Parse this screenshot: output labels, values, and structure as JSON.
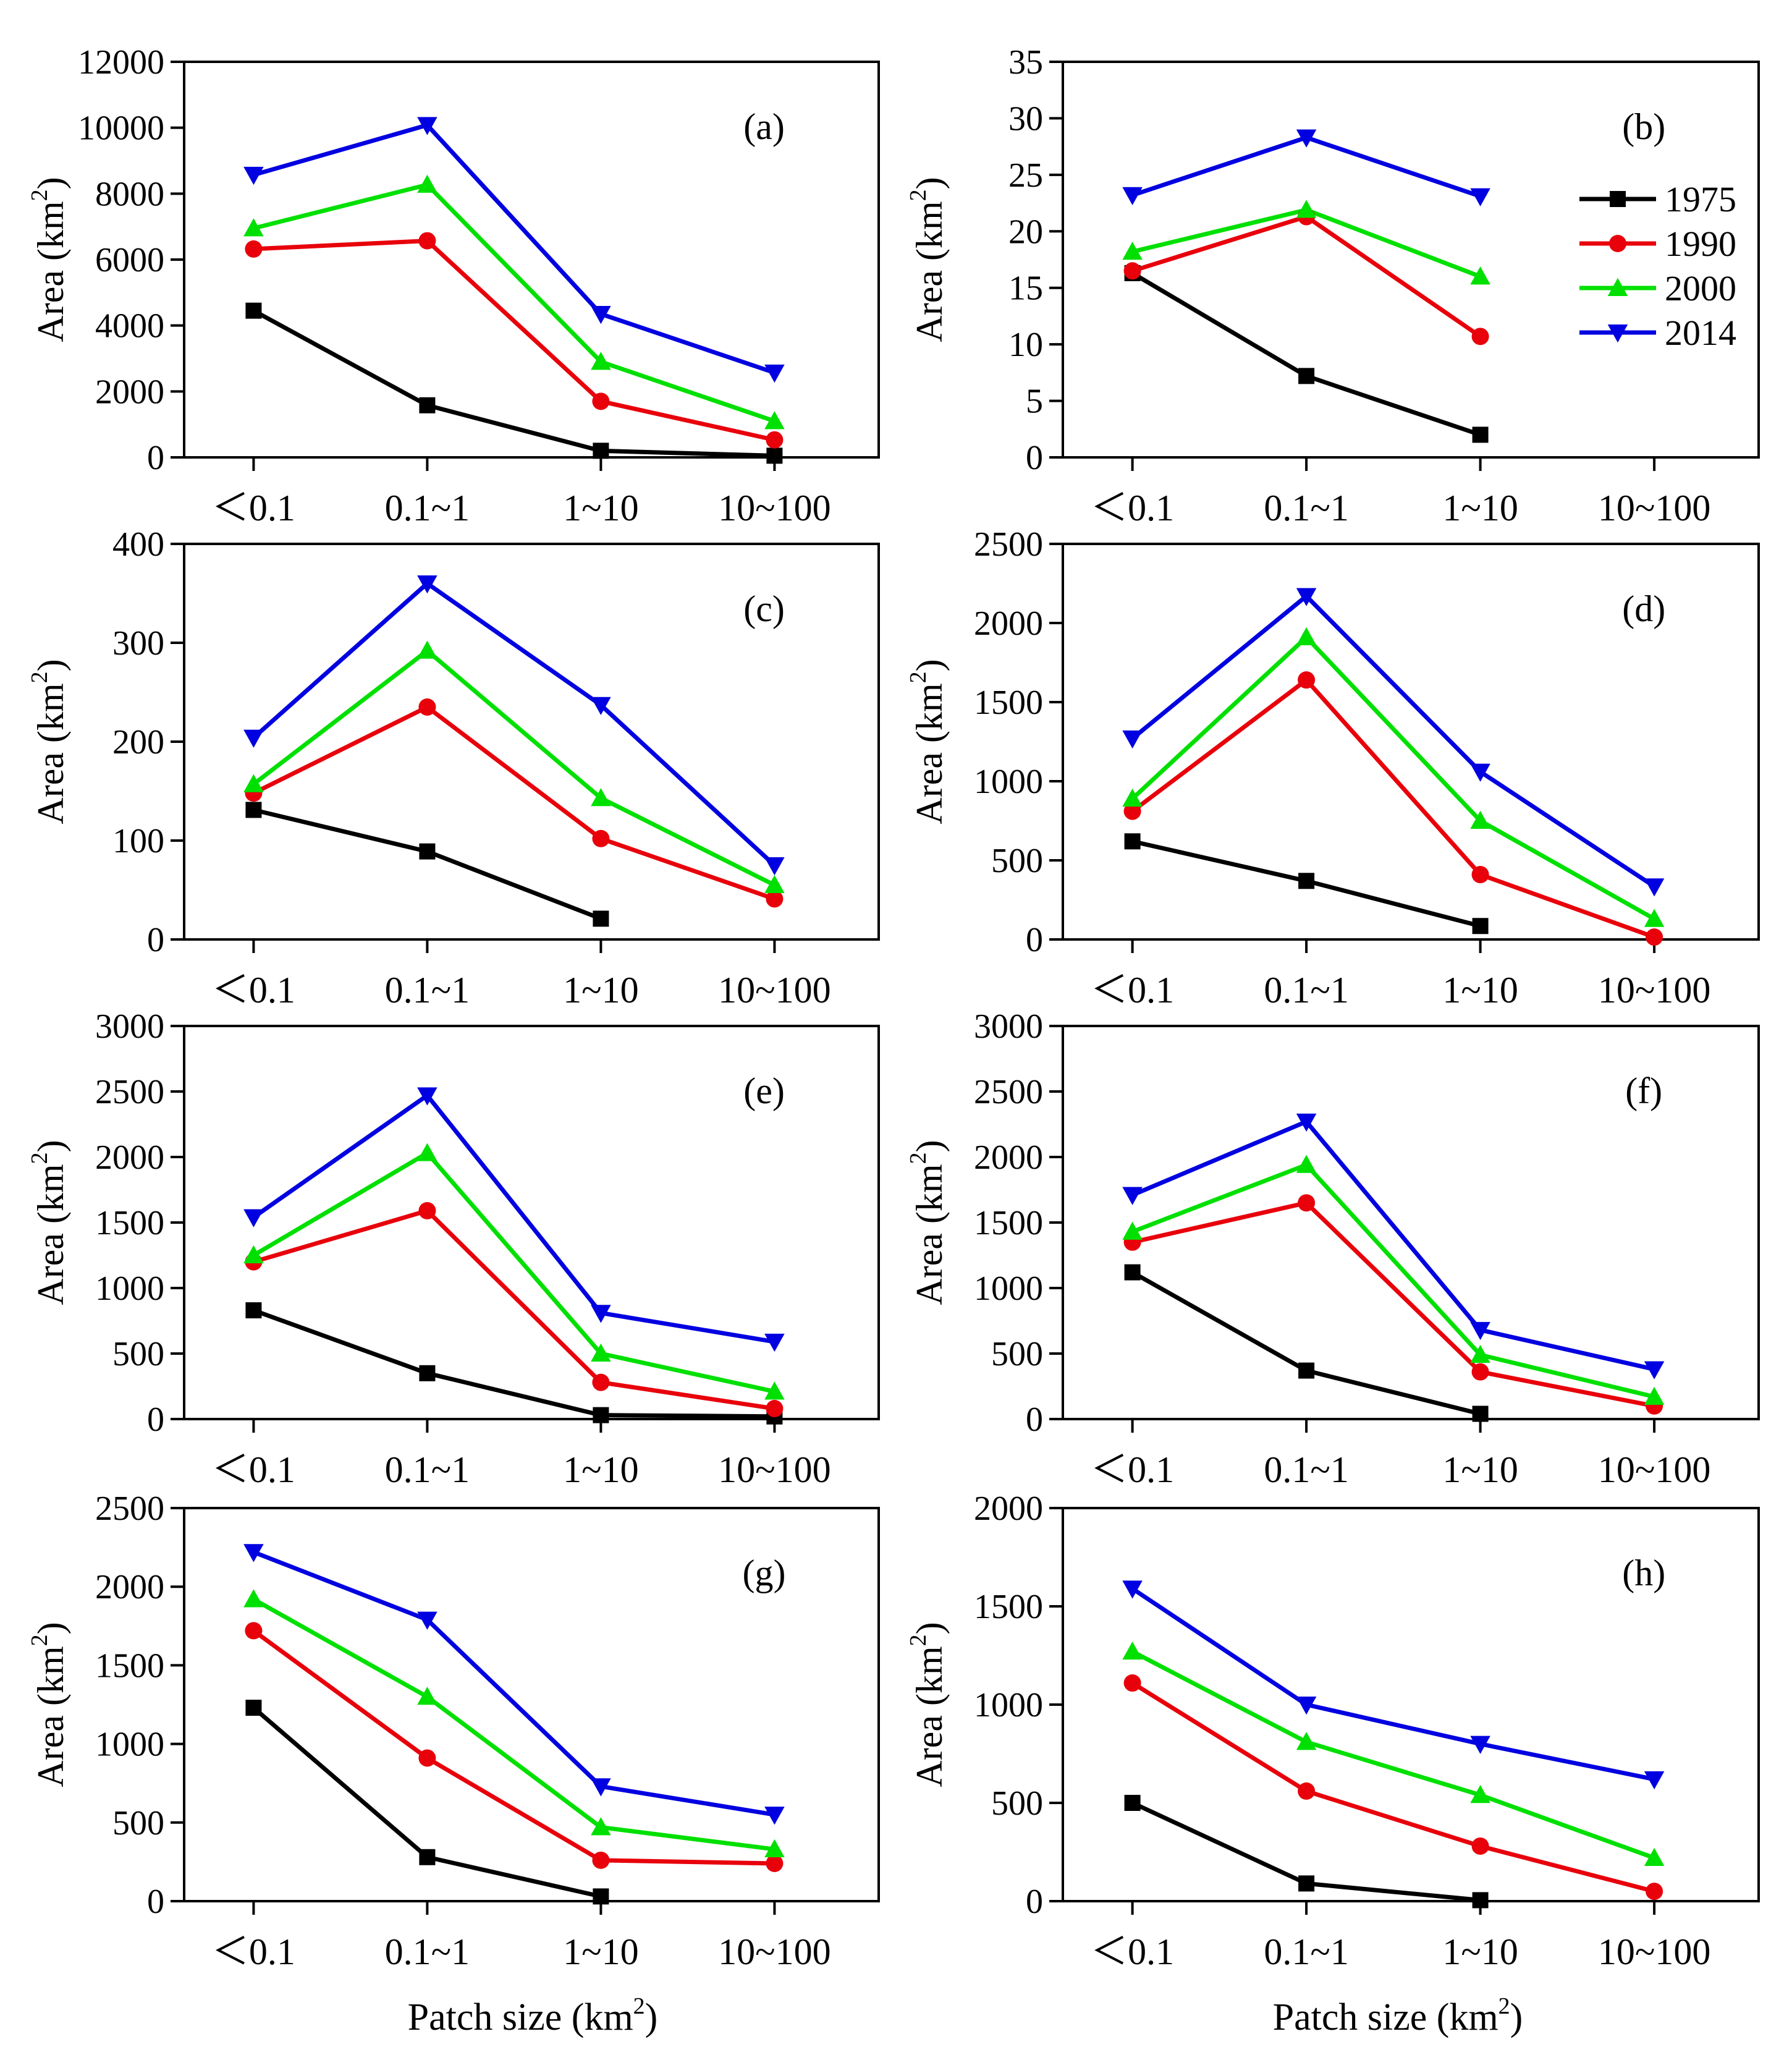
{
  "figure": {
    "xlabel_prefix": "Patch size (km",
    "xlabel_sup": "2",
    "xlabel_suffix": ")",
    "ylabel_prefix": "Area (km",
    "ylabel_sup": "2",
    "ylabel_suffix": ")"
  },
  "legend": [
    {
      "label": "1975",
      "color": "#000000",
      "marker": "square"
    },
    {
      "label": "1990",
      "color": "#e8000b",
      "marker": "circle"
    },
    {
      "label": "2000",
      "color": "#00e000",
      "marker": "triangle-up"
    },
    {
      "label": "2014",
      "color": "#0000e0",
      "marker": "triangle-down"
    }
  ],
  "chart_data": [
    {
      "type": "line",
      "panel": "(a)",
      "categories": [
        "<0.1",
        "0.1~1",
        "1~10",
        "10~100"
      ],
      "ylim": [
        0,
        12000
      ],
      "yticks": [
        0,
        2000,
        4000,
        6000,
        8000,
        10000,
        12000
      ],
      "series": [
        {
          "name": "1975",
          "values": [
            4450,
            1580,
            200,
            50
          ]
        },
        {
          "name": "1990",
          "values": [
            6320,
            6570,
            1700,
            530
          ]
        },
        {
          "name": "2000",
          "values": [
            6950,
            8270,
            2900,
            1100
          ]
        },
        {
          "name": "2014",
          "values": [
            8570,
            10080,
            4350,
            2570
          ]
        }
      ]
    },
    {
      "type": "line",
      "panel": "(b)",
      "categories": [
        "<0.1",
        "0.1~1",
        "1~10",
        "10~100"
      ],
      "ylim": [
        0,
        35
      ],
      "yticks": [
        0,
        5,
        10,
        15,
        20,
        25,
        30,
        35
      ],
      "series": [
        {
          "name": "1975",
          "values": [
            16.3,
            7.2,
            2.0,
            null
          ]
        },
        {
          "name": "1990",
          "values": [
            16.5,
            21.3,
            10.7,
            null
          ]
        },
        {
          "name": "2000",
          "values": [
            18.2,
            21.9,
            16.0,
            null
          ]
        },
        {
          "name": "2014",
          "values": [
            23.2,
            28.3,
            23.1,
            null
          ]
        }
      ]
    },
    {
      "type": "line",
      "panel": "(c)",
      "categories": [
        "<0.1",
        "0.1~1",
        "1~10",
        "10~100"
      ],
      "ylim": [
        0,
        400
      ],
      "yticks": [
        0,
        100,
        200,
        300,
        400
      ],
      "series": [
        {
          "name": "1975",
          "values": [
            131,
            89,
            21,
            null
          ]
        },
        {
          "name": "1990",
          "values": [
            148,
            235,
            102,
            41
          ]
        },
        {
          "name": "2000",
          "values": [
            157,
            292,
            143,
            55
          ]
        },
        {
          "name": "2014",
          "values": [
            204,
            360,
            237,
            75
          ]
        }
      ]
    },
    {
      "type": "line",
      "panel": "(d)",
      "categories": [
        "<0.1",
        "0.1~1",
        "1~10",
        "10~100"
      ],
      "ylim": [
        0,
        2500
      ],
      "yticks": [
        0,
        500,
        1000,
        1500,
        2000,
        2500
      ],
      "series": [
        {
          "name": "1975",
          "values": [
            620,
            370,
            85,
            null
          ]
        },
        {
          "name": "1990",
          "values": [
            810,
            1640,
            410,
            15
          ]
        },
        {
          "name": "2000",
          "values": [
            890,
            1910,
            750,
            130
          ]
        },
        {
          "name": "2014",
          "values": [
            1270,
            2170,
            1060,
            335
          ]
        }
      ]
    },
    {
      "type": "line",
      "panel": "(e)",
      "categories": [
        "<0.1",
        "0.1~1",
        "1~10",
        "10~100"
      ],
      "ylim": [
        0,
        3000
      ],
      "yticks": [
        0,
        500,
        1000,
        1500,
        2000,
        2500,
        3000
      ],
      "series": [
        {
          "name": "1975",
          "values": [
            830,
            350,
            30,
            20
          ]
        },
        {
          "name": "1990",
          "values": [
            1200,
            1590,
            280,
            80
          ]
        },
        {
          "name": "2000",
          "values": [
            1250,
            2030,
            500,
            210
          ]
        },
        {
          "name": "2014",
          "values": [
            1540,
            2470,
            810,
            590
          ]
        }
      ]
    },
    {
      "type": "line",
      "panel": "(f)",
      "categories": [
        "<0.1",
        "0.1~1",
        "1~10",
        "10~100"
      ],
      "ylim": [
        0,
        3000
      ],
      "yticks": [
        0,
        500,
        1000,
        1500,
        2000,
        2500,
        3000
      ],
      "series": [
        {
          "name": "1975",
          "values": [
            1120,
            370,
            40,
            null
          ]
        },
        {
          "name": "1990",
          "values": [
            1350,
            1650,
            360,
            100
          ]
        },
        {
          "name": "2000",
          "values": [
            1430,
            1940,
            490,
            170
          ]
        },
        {
          "name": "2014",
          "values": [
            1710,
            2270,
            680,
            380
          ]
        }
      ]
    },
    {
      "type": "line",
      "panel": "(g)",
      "categories": [
        "<0.1",
        "0.1~1",
        "1~10",
        "10~100"
      ],
      "ylim": [
        0,
        2500
      ],
      "yticks": [
        0,
        500,
        1000,
        1500,
        2000,
        2500
      ],
      "series": [
        {
          "name": "1975",
          "values": [
            1230,
            280,
            30,
            null
          ]
        },
        {
          "name": "1990",
          "values": [
            1720,
            910,
            260,
            240
          ]
        },
        {
          "name": "2000",
          "values": [
            1920,
            1300,
            470,
            330
          ]
        },
        {
          "name": "2014",
          "values": [
            2220,
            1790,
            730,
            550
          ]
        }
      ]
    },
    {
      "type": "line",
      "panel": "(h)",
      "categories": [
        "<0.1",
        "0.1~1",
        "1~10",
        "10~100"
      ],
      "ylim": [
        0,
        2000
      ],
      "yticks": [
        0,
        500,
        1000,
        1500,
        2000
      ],
      "series": [
        {
          "name": "1975",
          "values": [
            500,
            90,
            5,
            null
          ]
        },
        {
          "name": "1990",
          "values": [
            1110,
            560,
            280,
            50
          ]
        },
        {
          "name": "2000",
          "values": [
            1270,
            810,
            540,
            220
          ]
        },
        {
          "name": "2014",
          "values": [
            1590,
            1000,
            800,
            620
          ]
        }
      ]
    }
  ]
}
